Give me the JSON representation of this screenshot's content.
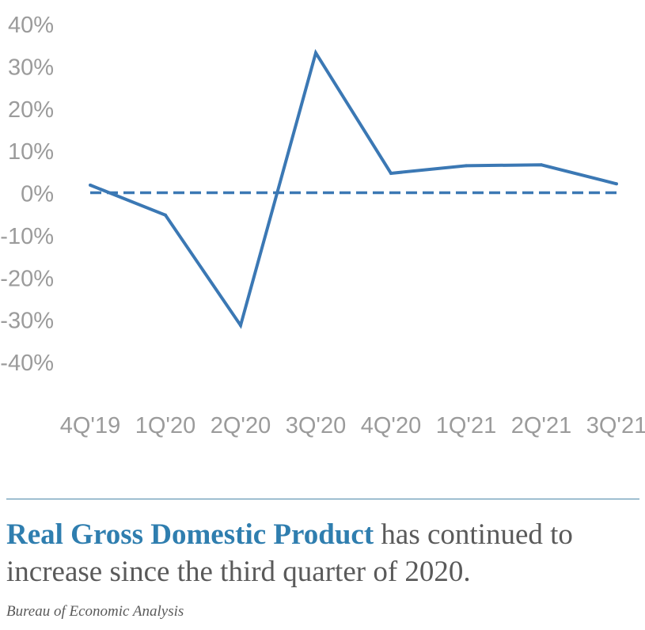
{
  "chart_data": {
    "type": "line",
    "categories": [
      "4Q'19",
      "1Q'20",
      "2Q'20",
      "3Q'20",
      "4Q'20",
      "1Q'21",
      "2Q'21",
      "3Q'21"
    ],
    "series": [
      {
        "values": [
          1.8,
          -5.3,
          -31.4,
          33.1,
          4.6,
          6.4,
          6.6,
          2.1
        ],
        "color": "#3b78b4"
      }
    ],
    "yticks": [
      "40%",
      "30%",
      "20%",
      "10%",
      "0%",
      "-10%",
      "-20%",
      "-30%",
      "-40%"
    ],
    "ylim": [
      -40,
      40
    ],
    "reference_line": {
      "y": 0,
      "style": "dashed"
    },
    "grid": false,
    "legend": "none"
  },
  "caption": {
    "highlight": "Real Gross Domestic Product",
    "rest": " has continued to increase since the third quarter of 2020."
  },
  "source": "Bureau of Economic Analysis"
}
